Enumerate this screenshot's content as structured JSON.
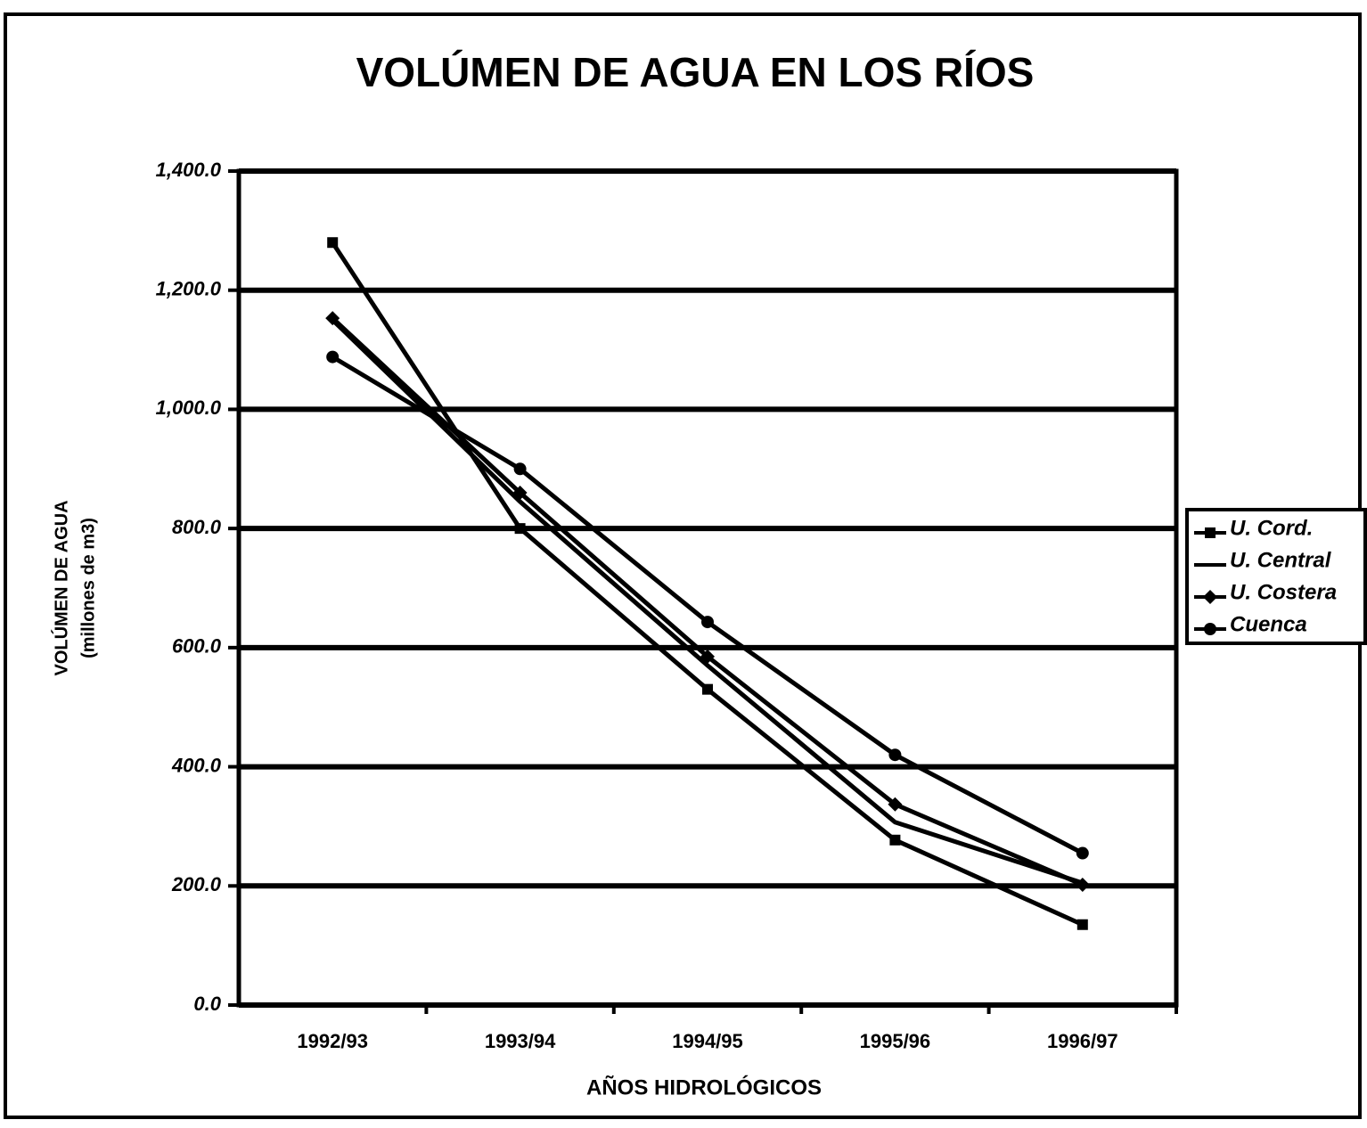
{
  "chart_data": {
    "type": "line",
    "title": "VOLÚMEN DE AGUA EN LOS RÍOS",
    "xlabel": "AÑOS HIDROLÓGICOS",
    "ylabel": [
      "VOLÚMEN DE AGUA",
      "(millones de m3)"
    ],
    "categories": [
      "1992/93",
      "1993/94",
      "1994/95",
      "1995/96",
      "1996/97"
    ],
    "series": [
      {
        "name": "U. Cord.",
        "color": "#000000",
        "marker": "square",
        "values": [
          1280,
          800,
          530,
          277,
          135
        ]
      },
      {
        "name": "U. Central",
        "color": "#000000",
        "marker": "none",
        "values": [
          1150,
          845,
          570,
          307,
          205
        ]
      },
      {
        "name": "U. Costera",
        "color": "#000000",
        "marker": "diamond",
        "values": [
          1153,
          860,
          585,
          337,
          202
        ]
      },
      {
        "name": "Cuenca",
        "color": "#000000",
        "marker": "circle",
        "values": [
          1088,
          900,
          643,
          420,
          255
        ]
      }
    ],
    "ylim": [
      0,
      1400
    ],
    "yticks": [
      {
        "value": 0,
        "label": "0.0"
      },
      {
        "value": 200,
        "label": "200.0"
      },
      {
        "value": 400,
        "label": "400.0"
      },
      {
        "value": 600,
        "label": "600.0"
      },
      {
        "value": 800,
        "label": "800.0"
      },
      {
        "value": 1000,
        "label": "1,000.0"
      },
      {
        "value": 1200,
        "label": "1,200.0"
      },
      {
        "value": 1400,
        "label": "1,400.0"
      }
    ],
    "grid": true,
    "legend": "right"
  }
}
